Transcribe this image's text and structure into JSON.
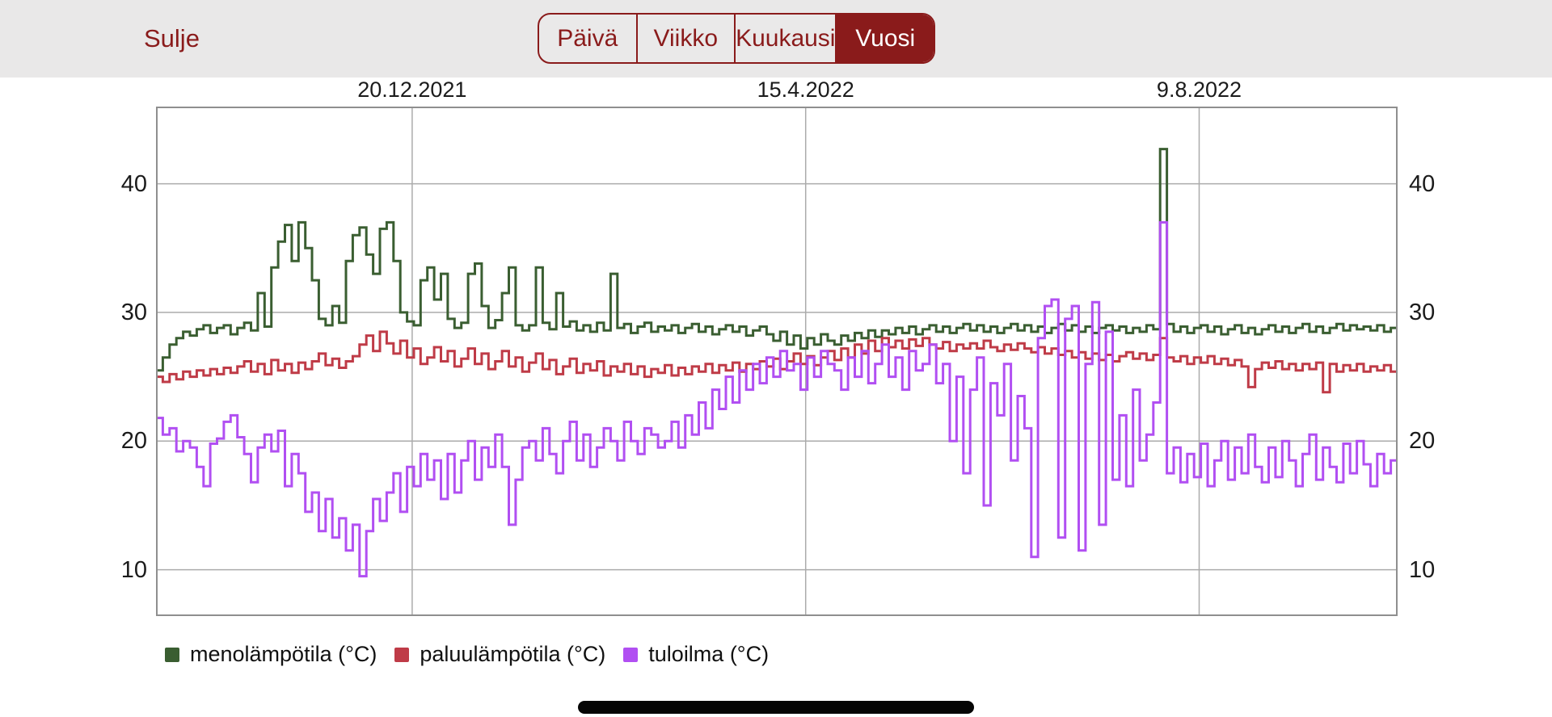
{
  "header": {
    "close_label": "Sulje",
    "segments": [
      {
        "label": "Päivä",
        "selected": false
      },
      {
        "label": "Viikko",
        "selected": false
      },
      {
        "label": "Kuukausi",
        "selected": false
      },
      {
        "label": "Vuosi",
        "selected": true
      }
    ]
  },
  "colors": {
    "accent_red": "#8A1B1B",
    "topbar_bg": "#E9E8E8",
    "segment_bg": "#EAE9E9",
    "segment_selected_text": "#FFFFFF",
    "series_green": "#3A5E31",
    "series_red": "#BF3B47",
    "series_purple": "#B14FF2",
    "gridline": "#ABABAB",
    "plot_border": "#8F8F8F",
    "axis_text": "#1B1B1B",
    "home_indicator": "#050505"
  },
  "chart_data": {
    "type": "line",
    "step": true,
    "grid": true,
    "legend_position": "bottom-left",
    "x_range_days": 366,
    "sample_interval_days": 2,
    "x_ticks": [
      {
        "label": "20.12.2021",
        "day": 75.5
      },
      {
        "label": "15.4.2022",
        "day": 191.5
      },
      {
        "label": "9.8.2022",
        "day": 307.5
      }
    ],
    "y_ticks": [
      40,
      30,
      20,
      10
    ],
    "ylim": [
      6.4,
      46
    ],
    "series": [
      {
        "name": "menolämpötila (°C)",
        "color": "#3A5E31",
        "values": [
          25.5,
          26.5,
          27.5,
          28.0,
          28.5,
          28.2,
          28.7,
          29.0,
          28.4,
          28.8,
          29.0,
          28.3,
          28.8,
          29.2,
          28.6,
          31.5,
          28.9,
          33.5,
          35.5,
          36.8,
          34.0,
          37.0,
          35.0,
          32.5,
          29.5,
          29.0,
          30.5,
          29.2,
          34.0,
          36.0,
          36.6,
          34.5,
          33.0,
          36.5,
          37.0,
          34.0,
          30.0,
          29.3,
          29.0,
          32.5,
          33.5,
          31.0,
          33.0,
          29.5,
          28.8,
          29.2,
          33.0,
          33.8,
          30.5,
          28.8,
          29.4,
          31.5,
          33.5,
          29.0,
          28.6,
          29.0,
          33.5,
          29.2,
          28.7,
          31.5,
          28.9,
          29.3,
          28.6,
          29.0,
          28.5,
          29.2,
          28.6,
          33.0,
          28.8,
          29.1,
          28.4,
          28.9,
          29.2,
          28.5,
          28.9,
          28.6,
          29.0,
          28.4,
          28.8,
          29.1,
          28.5,
          28.9,
          28.3,
          28.7,
          29.0,
          28.5,
          28.9,
          28.2,
          28.6,
          28.9,
          28.3,
          27.8,
          28.5,
          27.5,
          28.2,
          27.2,
          28.0,
          27.5,
          28.3,
          27.8,
          27.5,
          28.2,
          27.8,
          28.4,
          28.0,
          28.6,
          28.1,
          28.6,
          28.3,
          28.8,
          28.4,
          28.9,
          28.3,
          28.7,
          29.0,
          28.5,
          28.9,
          28.4,
          28.8,
          29.1,
          28.6,
          29.0,
          28.5,
          28.9,
          28.4,
          28.8,
          29.1,
          28.6,
          29.0,
          28.5,
          28.9,
          28.4,
          28.8,
          29.1,
          28.6,
          29.0,
          28.5,
          28.9,
          28.4,
          28.8,
          29.0,
          28.6,
          28.9,
          28.4,
          28.8,
          28.5,
          29.0,
          28.7,
          42.7,
          29.1,
          28.5,
          28.9,
          28.4,
          28.8,
          29.0,
          28.5,
          28.9,
          28.3,
          28.7,
          29.0,
          28.4,
          28.8,
          28.3,
          28.7,
          29.0,
          28.5,
          28.9,
          28.4,
          28.8,
          29.1,
          28.5,
          28.9,
          28.4,
          28.8,
          29.1,
          28.6,
          29.0,
          28.7,
          28.9,
          28.6,
          29.0,
          28.5,
          28.8,
          29.0
        ]
      },
      {
        "name": "paluulämpötila (°C)",
        "color": "#BF3B47",
        "values": [
          25.0,
          24.6,
          25.2,
          24.8,
          25.4,
          25.0,
          25.5,
          25.1,
          25.6,
          25.2,
          25.7,
          25.3,
          25.8,
          26.2,
          25.4,
          26.0,
          25.2,
          26.3,
          25.5,
          26.0,
          25.3,
          26.1,
          25.6,
          26.2,
          26.8,
          25.9,
          26.4,
          25.7,
          26.2,
          26.6,
          27.5,
          28.2,
          27.0,
          28.5,
          27.6,
          26.8,
          27.8,
          26.5,
          27.2,
          26.0,
          26.5,
          27.3,
          26.2,
          27.0,
          25.8,
          26.4,
          27.2,
          26.0,
          26.8,
          25.6,
          26.2,
          27.0,
          25.8,
          26.5,
          25.4,
          26.1,
          26.8,
          25.6,
          26.3,
          25.2,
          25.8,
          26.4,
          25.3,
          26.0,
          25.5,
          26.2,
          25.1,
          25.8,
          25.4,
          26.0,
          25.2,
          25.8,
          25.0,
          25.6,
          25.3,
          25.9,
          25.1,
          25.7,
          25.2,
          25.8,
          25.4,
          26.0,
          25.3,
          25.9,
          25.5,
          26.1,
          25.4,
          26.0,
          25.6,
          26.2,
          25.8,
          26.4,
          25.6,
          26.2,
          26.8,
          26.0,
          26.6,
          25.9,
          26.5,
          27.0,
          26.3,
          27.2,
          26.5,
          27.5,
          26.8,
          27.8,
          27.0,
          28.0,
          27.3,
          27.8,
          27.2,
          27.9,
          27.4,
          28.0,
          27.5,
          27.2,
          27.7,
          27.0,
          27.5,
          27.2,
          27.6,
          27.2,
          27.8,
          27.3,
          27.0,
          27.5,
          27.1,
          27.6,
          27.2,
          26.9,
          27.3,
          26.8,
          27.2,
          26.7,
          27.0,
          26.5,
          26.9,
          26.4,
          26.8,
          26.3,
          26.7,
          26.2,
          26.6,
          26.9,
          26.4,
          26.8,
          26.3,
          26.7,
          28.0,
          26.5,
          26.2,
          26.6,
          26.0,
          26.5,
          26.1,
          26.6,
          26.0,
          26.4,
          25.9,
          26.3,
          25.8,
          24.2,
          25.6,
          26.1,
          25.7,
          26.2,
          25.6,
          26.0,
          25.5,
          26.0,
          25.6,
          26.1,
          23.8,
          26.0,
          25.4,
          25.9,
          25.5,
          26.0,
          25.4,
          25.8,
          25.5,
          25.9,
          25.4,
          25.7
        ]
      },
      {
        "name": "tuloilma (°C)",
        "color": "#B14FF2",
        "values": [
          21.8,
          20.5,
          21.0,
          19.2,
          20.0,
          19.5,
          18.0,
          16.5,
          19.8,
          20.2,
          21.5,
          22.0,
          20.3,
          19.0,
          16.8,
          19.5,
          20.5,
          19.2,
          20.8,
          16.5,
          19.0,
          17.5,
          14.5,
          16.0,
          13.0,
          15.5,
          12.5,
          14.0,
          11.5,
          13.5,
          9.5,
          13.0,
          15.5,
          13.8,
          16.0,
          17.5,
          14.5,
          18.0,
          16.5,
          19.0,
          17.0,
          18.5,
          15.5,
          19.0,
          16.0,
          18.5,
          20.0,
          17.0,
          19.5,
          18.0,
          20.5,
          18.0,
          13.5,
          17.0,
          19.5,
          20.0,
          18.5,
          21.0,
          19.0,
          17.5,
          20.0,
          21.5,
          18.5,
          20.5,
          18.0,
          19.5,
          21.0,
          20.0,
          18.5,
          21.5,
          20.0,
          19.0,
          21.0,
          20.5,
          19.5,
          20.0,
          21.5,
          19.5,
          22.0,
          20.5,
          23.0,
          21.0,
          24.0,
          22.5,
          25.0,
          23.0,
          25.5,
          24.0,
          26.0,
          24.5,
          26.5,
          25.0,
          27.0,
          25.5,
          26.0,
          24.0,
          26.5,
          25.0,
          27.0,
          26.0,
          25.5,
          24.0,
          26.5,
          25.0,
          27.0,
          24.5,
          26.0,
          27.5,
          25.0,
          26.5,
          24.0,
          27.0,
          25.5,
          26.0,
          27.5,
          24.5,
          26.0,
          20.0,
          25.0,
          17.5,
          24.0,
          26.5,
          15.0,
          24.5,
          22.0,
          26.0,
          18.5,
          23.5,
          21.0,
          11.0,
          28.0,
          30.5,
          31.0,
          12.5,
          29.5,
          30.5,
          11.5,
          26.0,
          30.8,
          13.5,
          28.5,
          17.0,
          22.0,
          16.5,
          24.0,
          18.5,
          20.5,
          23.0,
          37.0,
          17.5,
          19.5,
          16.8,
          19.0,
          17.2,
          19.8,
          16.5,
          18.5,
          20.0,
          17.0,
          19.5,
          17.5,
          20.5,
          18.0,
          16.8,
          19.5,
          17.2,
          20.0,
          18.5,
          16.5,
          19.0,
          20.5,
          17.0,
          19.5,
          18.0,
          16.8,
          19.8,
          17.5,
          20.0,
          18.2,
          16.5,
          19.0,
          17.5,
          18.5,
          17.0
        ]
      }
    ]
  }
}
